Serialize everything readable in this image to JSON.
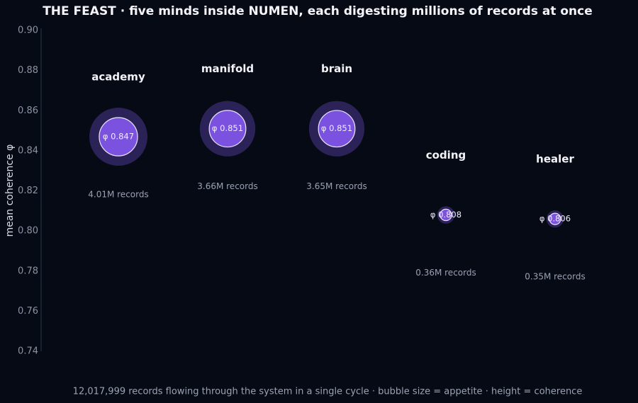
{
  "chart_data": {
    "type": "bubble",
    "title": "THE FEAST  ·  five minds inside NUMEN, each digesting millions of records at once",
    "footnote": "12,017,999 records flowing through the system in a single cycle  ·  bubble size = appetite  ·  height = coherence",
    "y_label": "mean coherence φ",
    "categories": [
      "academy",
      "manifold",
      "brain",
      "coding",
      "healer"
    ],
    "series": [
      {
        "name": null,
        "color": "#7b52e0",
        "halo_color": "#2b2358",
        "values": [
          0.847,
          0.851,
          0.851,
          0.808,
          0.806
        ],
        "value_labels": [
          "φ 0.847",
          "φ 0.851",
          "φ 0.851",
          "φ 0.808",
          "φ 0.806"
        ],
        "sizes": [
          4010000,
          3660000,
          3650000,
          360000,
          350000
        ],
        "size_labels": [
          "4.01M records",
          "3.66M records",
          "3.65M records",
          "0.36M records",
          "0.35M records"
        ]
      }
    ],
    "ylim": [
      0.74,
      0.9
    ],
    "yticks": [
      0.74,
      0.76,
      0.78,
      {
        "value": 0.8,
        "label": "0.80"
      },
      0.82,
      0.84,
      0.86,
      0.88,
      {
        "value": 0.9,
        "label": "0.90"
      }
    ],
    "grid": false
  }
}
